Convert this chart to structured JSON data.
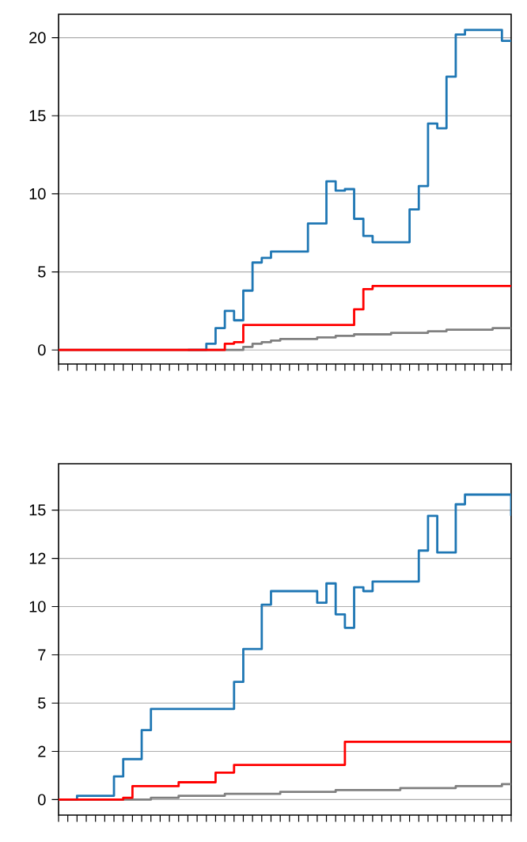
{
  "chart_data": [
    {
      "type": "step",
      "categories": [
        null,
        null,
        null,
        null,
        null,
        null,
        null,
        null,
        null,
        null,
        null,
        null,
        null,
        null,
        null,
        null,
        null,
        null,
        null,
        null,
        null,
        null,
        null,
        null,
        null,
        null,
        null,
        null,
        null,
        null,
        null,
        null,
        null,
        null,
        null,
        null,
        null,
        null,
        null,
        null,
        null,
        null,
        null,
        null,
        null,
        null,
        null,
        null,
        null,
        null
      ],
      "series": [
        {
          "color": "#1f77b4",
          "values": [
            null,
            null,
            null,
            null,
            null,
            null,
            null,
            null,
            null,
            null,
            null,
            null,
            null,
            null,
            0,
            0,
            0.4,
            1.4,
            2.5,
            1.9,
            3.8,
            5.6,
            5.9,
            6.3,
            6.3,
            6.3,
            6.3,
            8.1,
            8.1,
            10.8,
            10.2,
            10.3,
            8.4,
            7.3,
            6.9,
            6.9,
            6.9,
            6.9,
            9.0,
            10.5,
            14.5,
            14.2,
            17.5,
            20.2,
            20.5,
            20.5,
            20.5,
            20.5,
            19.8,
            19.8
          ]
        },
        {
          "color": "#808080",
          "values": [
            0,
            0,
            0,
            0,
            0,
            0,
            0,
            0,
            0,
            0,
            0,
            0,
            0,
            0,
            0,
            0,
            0,
            0,
            0,
            0,
            0.2,
            0.4,
            0.5,
            0.6,
            0.7,
            0.7,
            0.7,
            0.7,
            0.8,
            0.8,
            0.9,
            0.9,
            1.0,
            1.0,
            1.0,
            1.0,
            1.1,
            1.1,
            1.1,
            1.1,
            1.2,
            1.2,
            1.3,
            1.3,
            1.3,
            1.3,
            1.3,
            1.4,
            1.4,
            1.4
          ]
        },
        {
          "color": "#ff0000",
          "values": [
            0,
            0,
            0,
            0,
            0,
            0,
            0,
            0,
            0,
            0,
            0,
            0,
            0,
            0,
            0,
            0,
            0,
            0,
            0.4,
            0.5,
            1.6,
            1.6,
            1.6,
            1.6,
            1.6,
            1.6,
            1.6,
            1.6,
            1.6,
            1.6,
            1.6,
            1.6,
            2.6,
            3.9,
            4.1,
            4.1,
            4.1,
            4.1,
            4.1,
            4.1,
            4.1,
            4.1,
            4.1,
            4.1,
            4.1,
            4.1,
            4.1,
            4.1,
            4.1,
            4.1
          ]
        }
      ],
      "ylim": [
        -0.9,
        21.5
      ],
      "yticks": [
        0,
        5,
        10,
        15,
        20
      ],
      "grid": "y",
      "tick_labels": "y"
    },
    {
      "type": "step",
      "categories": [
        null,
        null,
        null,
        null,
        null,
        null,
        null,
        null,
        null,
        null,
        null,
        null,
        null,
        null,
        null,
        null,
        null,
        null,
        null,
        null,
        null,
        null,
        null,
        null,
        null,
        null,
        null,
        null,
        null,
        null,
        null,
        null,
        null,
        null,
        null,
        null,
        null,
        null,
        null,
        null,
        null,
        null,
        null,
        null,
        null,
        null,
        null,
        null,
        null,
        null
      ],
      "series": [
        {
          "color": "#1f77b4",
          "values": [
            0,
            0,
            0.2,
            0.2,
            0.2,
            0.2,
            1.2,
            2.1,
            2.1,
            3.6,
            4.7,
            4.7,
            4.7,
            4.7,
            4.7,
            4.7,
            4.7,
            4.7,
            4.7,
            6.1,
            7.8,
            7.8,
            10.1,
            10.8,
            10.8,
            10.8,
            10.8,
            10.8,
            10.2,
            11.2,
            9.6,
            8.9,
            11.0,
            10.8,
            11.3,
            11.3,
            11.3,
            11.3,
            11.3,
            12.9,
            14.7,
            12.8,
            12.8,
            15.3,
            15.8,
            15.8,
            15.8,
            15.8,
            15.8,
            14.7
          ]
        },
        {
          "color": "#808080",
          "values": [
            0,
            0,
            0,
            0,
            0,
            0,
            0,
            0,
            0,
            0,
            0.1,
            0.1,
            0.1,
            0.2,
            0.2,
            0.2,
            0.2,
            0.2,
            0.3,
            0.3,
            0.3,
            0.3,
            0.3,
            0.3,
            0.4,
            0.4,
            0.4,
            0.4,
            0.4,
            0.4,
            0.5,
            0.5,
            0.5,
            0.5,
            0.5,
            0.5,
            0.5,
            0.6,
            0.6,
            0.6,
            0.6,
            0.6,
            0.6,
            0.7,
            0.7,
            0.7,
            0.7,
            0.7,
            0.8,
            0.8
          ]
        },
        {
          "color": "#ff0000",
          "values": [
            0,
            0,
            0,
            0,
            0,
            0,
            0,
            0.1,
            0.7,
            0.7,
            0.7,
            0.7,
            0.7,
            0.9,
            0.9,
            0.9,
            0.9,
            1.4,
            1.4,
            1.8,
            1.8,
            1.8,
            1.8,
            1.8,
            1.8,
            1.8,
            1.8,
            1.8,
            1.8,
            1.8,
            1.8,
            3.0,
            3.0,
            3.0,
            3.0,
            3.0,
            3.0,
            3.0,
            3.0,
            3.0,
            3.0,
            3.0,
            3.0,
            3.0,
            3.0,
            3.0,
            3.0,
            3.0,
            3.0,
            3.0
          ]
        }
      ],
      "ylim": [
        -0.8,
        17.4
      ],
      "yticks": [
        0,
        {
          "value": 2.5,
          "label": "2"
        },
        5,
        {
          "value": 7.5,
          "label": "7"
        },
        10,
        {
          "value": 12.5,
          "label": "12"
        },
        15
      ],
      "grid": "y",
      "tick_labels": "y"
    }
  ]
}
